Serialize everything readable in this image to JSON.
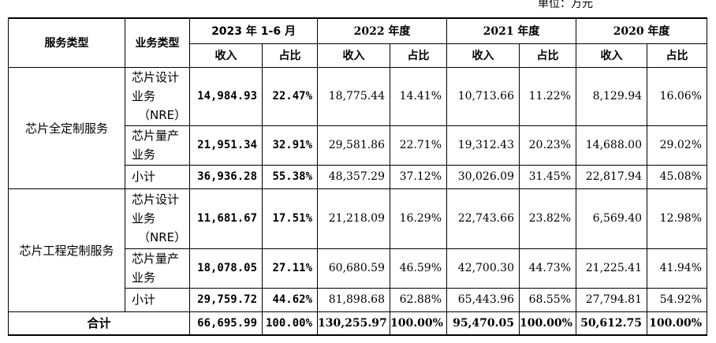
{
  "unit_label": "单位：万元",
  "headers": {
    "service_type": "服务类型",
    "business_type": "业务类型",
    "periods": [
      "2023 年 1-6 月",
      "2022 年度",
      "2021 年度",
      "2020 年度"
    ],
    "revenue": "收入",
    "share": "占比"
  },
  "groups": [
    {
      "service": "芯片全定制服务",
      "rows": [
        {
          "biz": [
            "芯片设计",
            "业务",
            "（NRE）"
          ],
          "values": [
            "14,984.93",
            "22.47%",
            "18,775.44",
            "14.41%",
            "10,713.66",
            "11.22%",
            "8,129.94",
            "16.06%"
          ]
        },
        {
          "biz": [
            "芯片量产",
            "业务"
          ],
          "values": [
            "21,951.34",
            "32.91%",
            "29,581.86",
            "22.71%",
            "19,312.43",
            "20.23%",
            "14,688.00",
            "29.02%"
          ]
        },
        {
          "biz": [
            "小计"
          ],
          "values": [
            "36,936.28",
            "55.38%",
            "48,357.29",
            "37.12%",
            "30,026.09",
            "31.45%",
            "22,817.94",
            "45.08%"
          ]
        }
      ]
    },
    {
      "service": "芯片工程定制服务",
      "rows": [
        {
          "biz": [
            "芯片设计",
            "业务",
            "（NRE）"
          ],
          "values": [
            "11,681.67",
            "17.51%",
            "21,218.09",
            "16.29%",
            "22,743.66",
            "23.82%",
            "6,569.40",
            "12.98%"
          ]
        },
        {
          "biz": [
            "芯片量产",
            "业务"
          ],
          "values": [
            "18,078.05",
            "27.11%",
            "60,680.59",
            "46.59%",
            "42,700.30",
            "44.73%",
            "21,225.41",
            "41.94%"
          ]
        },
        {
          "biz": [
            "小计"
          ],
          "values": [
            "29,759.72",
            "44.62%",
            "81,898.68",
            "62.88%",
            "65,443.96",
            "68.55%",
            "27,794.81",
            "54.92%"
          ]
        }
      ]
    }
  ],
  "total": {
    "label": "合计",
    "values": [
      "66,695.99",
      "100.00%",
      "130,255.97",
      "100.00%",
      "95,470.05",
      "100.00%",
      "50,612.75",
      "100.00%"
    ]
  }
}
